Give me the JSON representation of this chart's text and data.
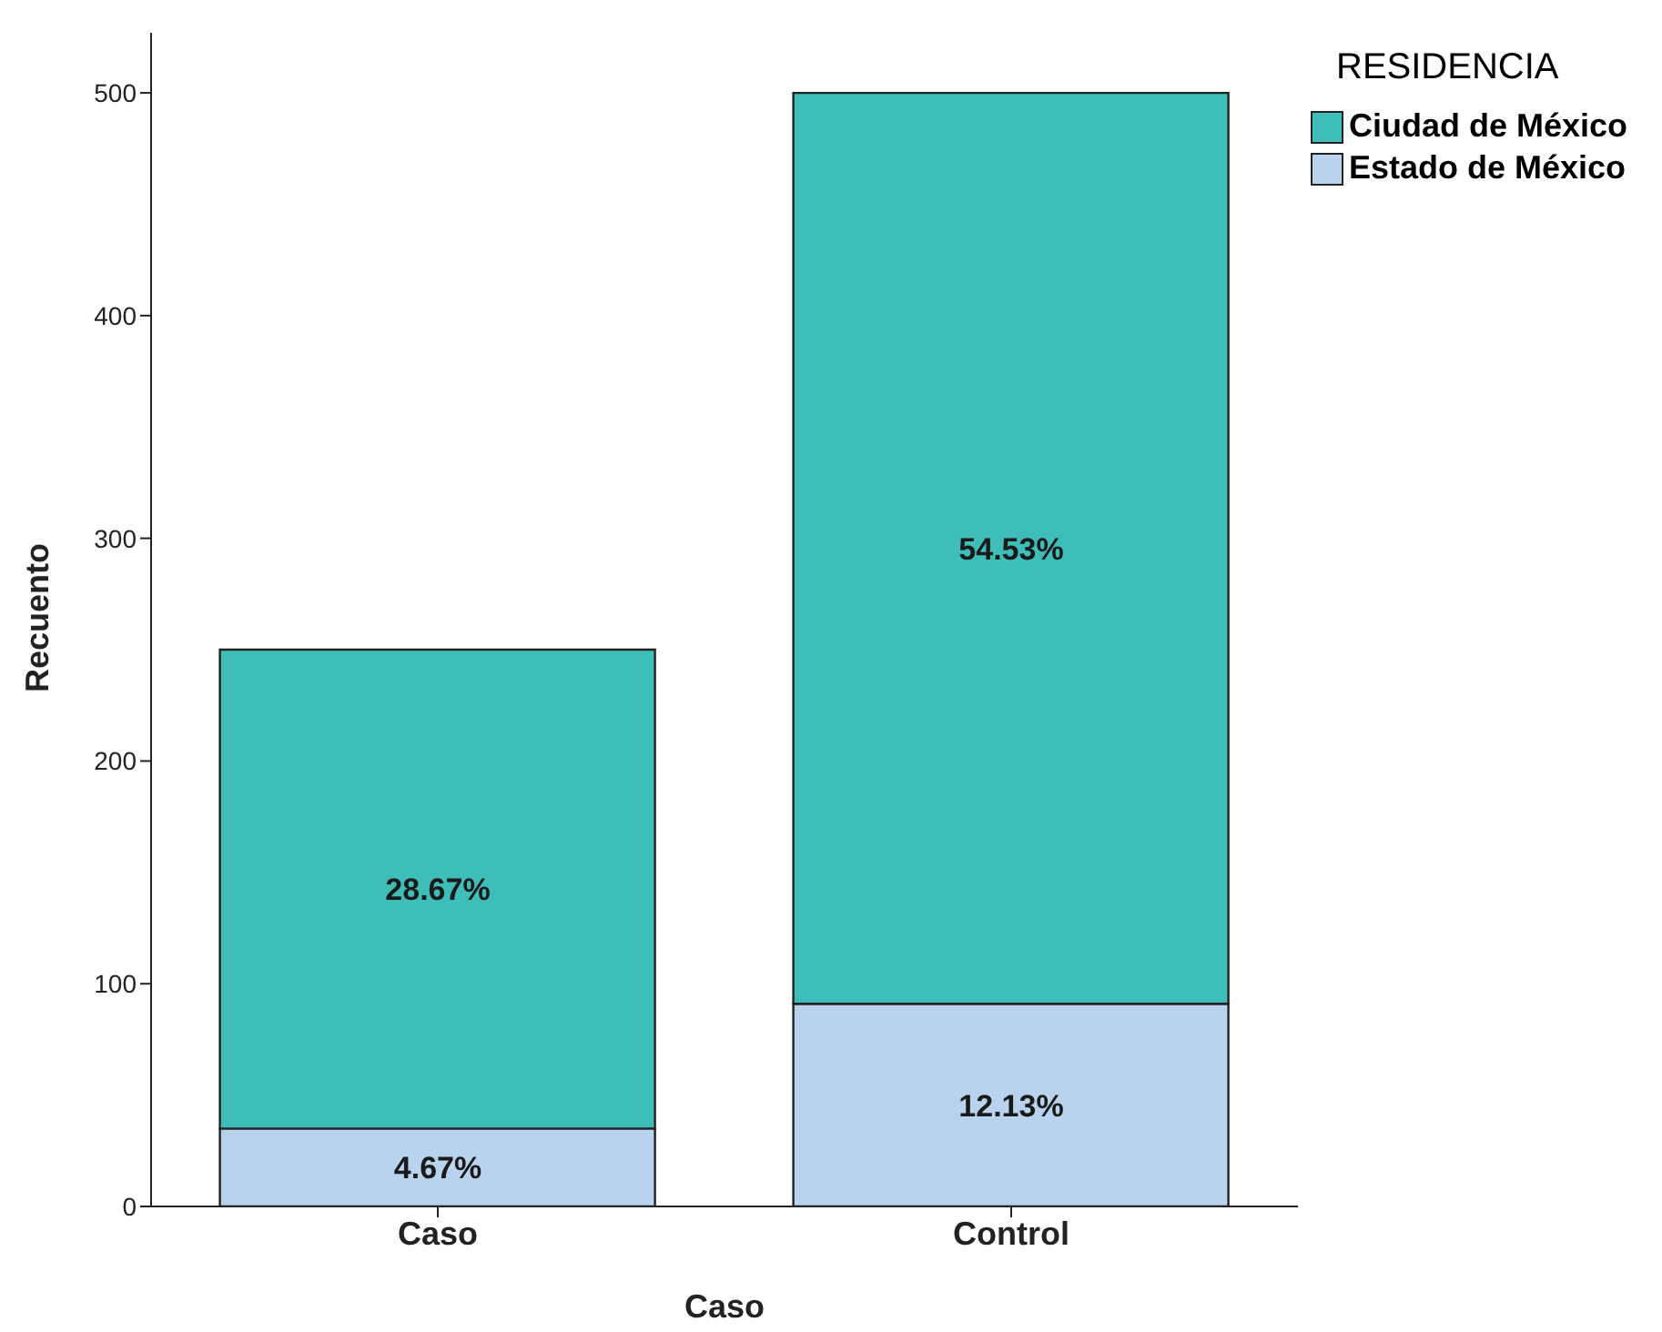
{
  "chart_data": {
    "type": "bar",
    "stacked": true,
    "xlabel": "Caso",
    "ylabel": "Recuento",
    "legend_title": "RESIDENCIA",
    "legend": "top right",
    "categories": [
      "Caso",
      "Control"
    ],
    "series": [
      {
        "name": "Estado de México",
        "color": "#b9d3ef",
        "values": [
          35,
          91
        ]
      },
      {
        "name": "Ciudad de México",
        "color": "#3fbdb9",
        "values": [
          215,
          409
        ]
      }
    ],
    "annotations": [
      "4.67%",
      "28.67%",
      "12.13%",
      "54.53%"
    ],
    "ylim": [
      0,
      527
    ],
    "yticks": [
      0,
      100,
      200,
      300,
      400,
      500
    ]
  }
}
